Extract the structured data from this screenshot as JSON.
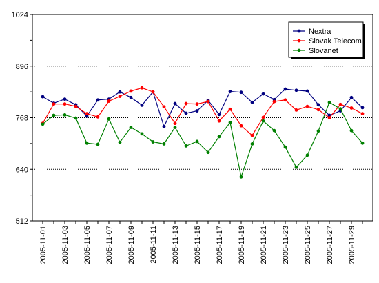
{
  "chart_data": {
    "type": "line",
    "title": "",
    "xlabel": "",
    "ylabel": "",
    "ylim": [
      512,
      1024
    ],
    "yticks": [
      512,
      640,
      768,
      896,
      1024
    ],
    "minor_step": 64,
    "grid": true,
    "legend_position": "top-right",
    "x": [
      "2005-11-01",
      "2005-11-02",
      "2005-11-03",
      "2005-11-04",
      "2005-11-05",
      "2005-11-06",
      "2005-11-07",
      "2005-11-08",
      "2005-11-09",
      "2005-11-10",
      "2005-11-11",
      "2005-11-12",
      "2005-11-13",
      "2005-11-14",
      "2005-11-15",
      "2005-11-16",
      "2005-11-17",
      "2005-11-18",
      "2005-11-19",
      "2005-11-20",
      "2005-11-21",
      "2005-11-22",
      "2005-11-23",
      "2005-11-24",
      "2005-11-25",
      "2005-11-26",
      "2005-11-27",
      "2005-11-28",
      "2005-11-29",
      "2005-11-30"
    ],
    "xtick_labels": [
      "2005-11-01",
      "2005-11-03",
      "2005-11-05",
      "2005-11-07",
      "2005-11-09",
      "2005-11-11",
      "2005-11-13",
      "2005-11-15",
      "2005-11-17",
      "2005-11-19",
      "2005-11-21",
      "2005-11-23",
      "2005-11-25",
      "2005-11-27",
      "2005-11-29"
    ],
    "series": [
      {
        "name": "Nextra",
        "color": "#000080",
        "values": [
          820,
          804,
          814,
          800,
          772,
          812,
          814,
          832,
          818,
          799,
          832,
          746,
          803,
          779,
          785,
          811,
          776,
          833,
          831,
          806,
          827,
          813,
          839,
          836,
          834,
          800,
          774,
          785,
          818,
          793
        ]
      },
      {
        "name": "Slovak Telecom",
        "color": "#ff0000",
        "values": [
          754,
          802,
          802,
          796,
          778,
          770,
          809,
          821,
          834,
          842,
          832,
          795,
          754,
          803,
          802,
          808,
          760,
          789,
          748,
          724,
          769,
          808,
          812,
          787,
          796,
          788,
          768,
          801,
          792,
          778
        ]
      },
      {
        "name": "Slovanet",
        "color": "#008000",
        "values": [
          752,
          774,
          775,
          767,
          705,
          702,
          765,
          707,
          744,
          728,
          708,
          703,
          744,
          698,
          709,
          682,
          721,
          756,
          621,
          703,
          760,
          736,
          695,
          645,
          675,
          735,
          806,
          790,
          736,
          705
        ]
      }
    ]
  }
}
